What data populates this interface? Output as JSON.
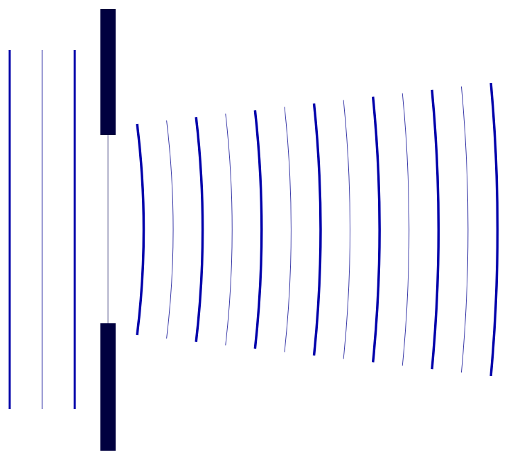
{
  "diagram": {
    "kind": "single-slit diffraction",
    "colors": {
      "background": "#ffffff",
      "barrier": "#00003f",
      "wave_crest": "#0000aa",
      "wave_trough": "#3a3aa8",
      "slit_gap_line": "#6a6a9a"
    },
    "incident_wavefronts": [
      {
        "id": "incident-1",
        "type": "crest"
      },
      {
        "id": "incident-2",
        "type": "trough"
      },
      {
        "id": "incident-3",
        "type": "crest"
      }
    ],
    "diffracted_wavefronts": [
      {
        "id": "diffracted-1",
        "type": "crest"
      },
      {
        "id": "diffracted-2",
        "type": "trough"
      },
      {
        "id": "diffracted-3",
        "type": "crest"
      },
      {
        "id": "diffracted-4",
        "type": "trough"
      },
      {
        "id": "diffracted-5",
        "type": "crest"
      },
      {
        "id": "diffracted-6",
        "type": "trough"
      },
      {
        "id": "diffracted-7",
        "type": "crest"
      },
      {
        "id": "diffracted-8",
        "type": "trough"
      },
      {
        "id": "diffracted-9",
        "type": "crest"
      },
      {
        "id": "diffracted-10",
        "type": "trough"
      },
      {
        "id": "diffracted-11",
        "type": "crest"
      },
      {
        "id": "diffracted-12",
        "type": "trough"
      },
      {
        "id": "diffracted-13",
        "type": "crest"
      }
    ]
  }
}
